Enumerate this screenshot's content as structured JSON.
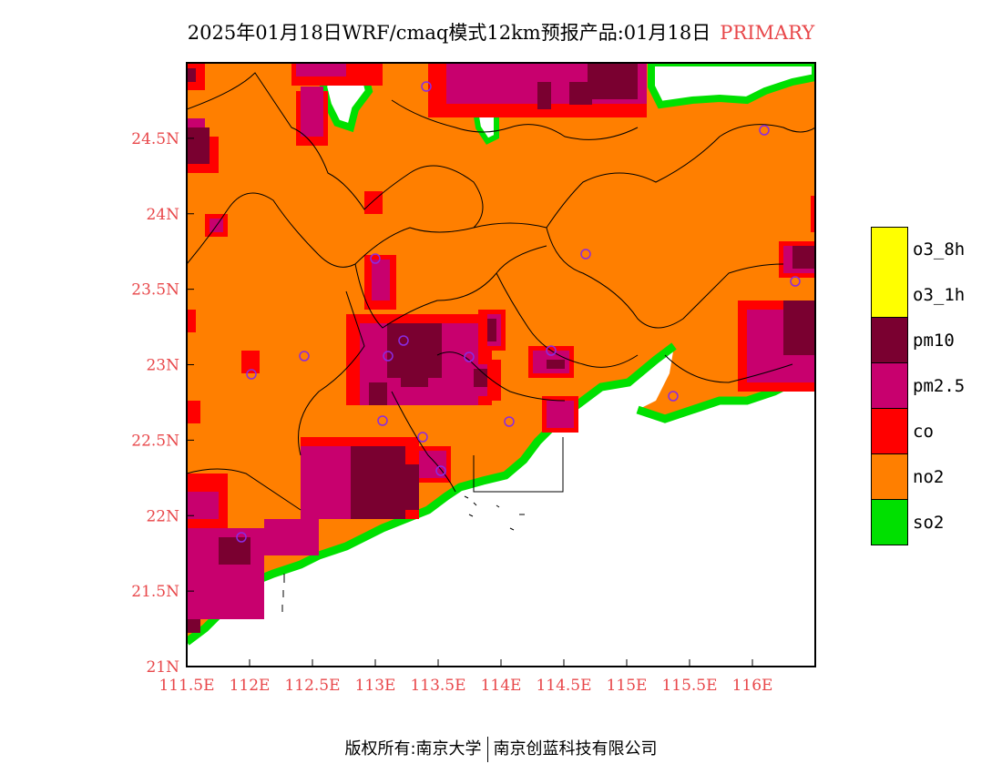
{
  "title": {
    "main": "2025年01月18日WRF/cmaq模式12km预报产品:01月18日",
    "tag": "PRIMARY"
  },
  "colors": {
    "tag": "#e8474a",
    "o3_8h": "#ffff00",
    "o3_1h": "#ffff00",
    "pm10": "#7a0030",
    "pm25": "#c8006e",
    "co": "#ff0000",
    "no2": "#ff7f00",
    "so2": "#00e000"
  },
  "map": {
    "lon_range": [
      111.5,
      116.5
    ],
    "lat_range": [
      21,
      25
    ],
    "lon_ticks": [
      "111.5E",
      "112E",
      "112.5E",
      "113E",
      "113.5E",
      "114E",
      "114.5E",
      "115E",
      "115.5E",
      "116E"
    ],
    "lat_ticks": [
      "21N",
      "21.5N",
      "22N",
      "22.5N",
      "23N",
      "23.5N",
      "24N",
      "24.5N"
    ]
  },
  "legend": [
    {
      "key": "o3_8h",
      "label": "o3_8h",
      "color": "#ffff00"
    },
    {
      "key": "o3_1h",
      "label": "o3_1h",
      "color": "#ffff00"
    },
    {
      "key": "pm10",
      "label": "pm10",
      "color": "#7a0030"
    },
    {
      "key": "pm25",
      "label": "pm2.5",
      "color": "#c8006e"
    },
    {
      "key": "co",
      "label": "co",
      "color": "#ff0000"
    },
    {
      "key": "no2",
      "label": "no2",
      "color": "#ff7f00"
    },
    {
      "key": "so2",
      "label": "so2",
      "color": "#00e000"
    }
  ],
  "footer": {
    "left": "版权所有:南京大学",
    "right": "南京创蓝科技有限公司"
  }
}
